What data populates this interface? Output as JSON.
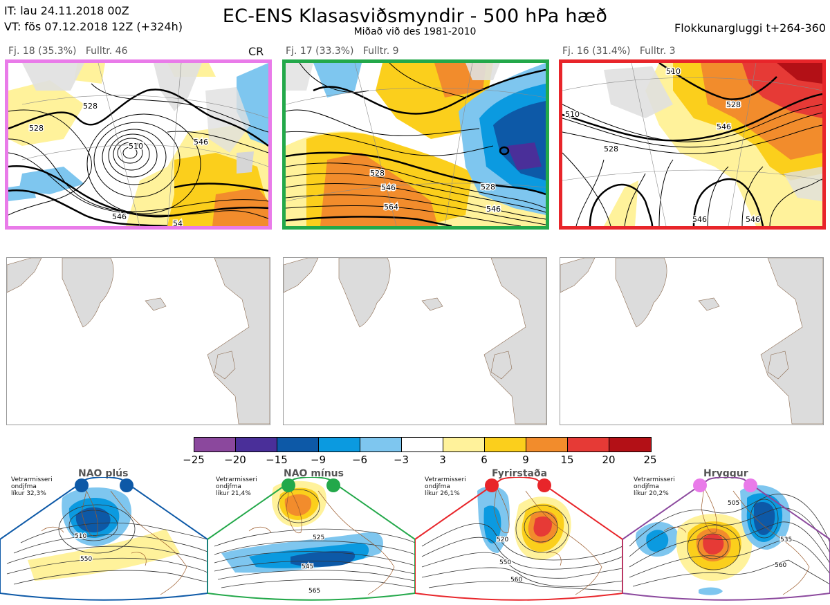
{
  "header": {
    "issue_time": "IT: lau 24.11.2018 00Z",
    "valid_time": "VT: fös 07.12.2018 12Z  (+324h)",
    "title": "EC-ENS Klasasviðsmyndir - 500 hPa hæð",
    "subtitle": "Miðað við des 1981-2010",
    "window": "Flokkunargluggi t+264-360"
  },
  "clusters": [
    {
      "label": "Fj. 18 (35.3%)   Fulltr. 46",
      "border_color": "#e97be9",
      "tag": "CR",
      "contour_labels": [
        "528",
        "528",
        "510",
        "528",
        "546",
        "546",
        "54"
      ]
    },
    {
      "label": "Fj. 17 (33.3%)   Fulltr. 9",
      "border_color": "#23a84a",
      "tag": "",
      "contour_labels": [
        "528",
        "546",
        "564",
        "528",
        "546"
      ]
    },
    {
      "label": "Fj. 16 (31.4%)   Fulltr. 3",
      "border_color": "#e8252a",
      "tag": "",
      "contour_labels": [
        "510",
        "510",
        "528",
        "528",
        "546",
        "546",
        "546"
      ]
    }
  ],
  "colorbar": {
    "colors": [
      "#8b489d",
      "#4a2f99",
      "#0d59a7",
      "#0b9ae0",
      "#7ec6ef",
      "#ffffff",
      "#fff29b",
      "#fbcf1c",
      "#f28c2c",
      "#e63a36",
      "#b31016"
    ],
    "ticks": [
      "−25",
      "−20",
      "−15",
      "−9",
      "−6",
      "−3",
      "3",
      "6",
      "9",
      "15",
      "20",
      "25"
    ]
  },
  "regimes": [
    {
      "name": "NAO plús",
      "freq": [
        "Vetrarmisseri",
        "ondjfma",
        "líkur 32,3%"
      ],
      "color": "#0d59a7",
      "contour_labels": [
        "510",
        "550"
      ]
    },
    {
      "name": "NAO mínus",
      "freq": [
        "Vetrarmisseri",
        "ondjfma",
        "líkur 21,4%"
      ],
      "color": "#23a84a",
      "contour_labels": [
        "525",
        "545",
        "565"
      ]
    },
    {
      "name": "Fyrirstaða",
      "freq": [
        "Vetrarmisseri",
        "ondjfma",
        "líkur 26,1%"
      ],
      "color": "#e8252a",
      "contour_labels": [
        "520",
        "550",
        "560"
      ]
    },
    {
      "name": "Hryggur",
      "freq": [
        "Vetrarmisseri",
        "ondjfma",
        "líkur 20,2%"
      ],
      "color": "#e97be9",
      "contour_labels": [
        "505",
        "535",
        "560"
      ]
    }
  ]
}
